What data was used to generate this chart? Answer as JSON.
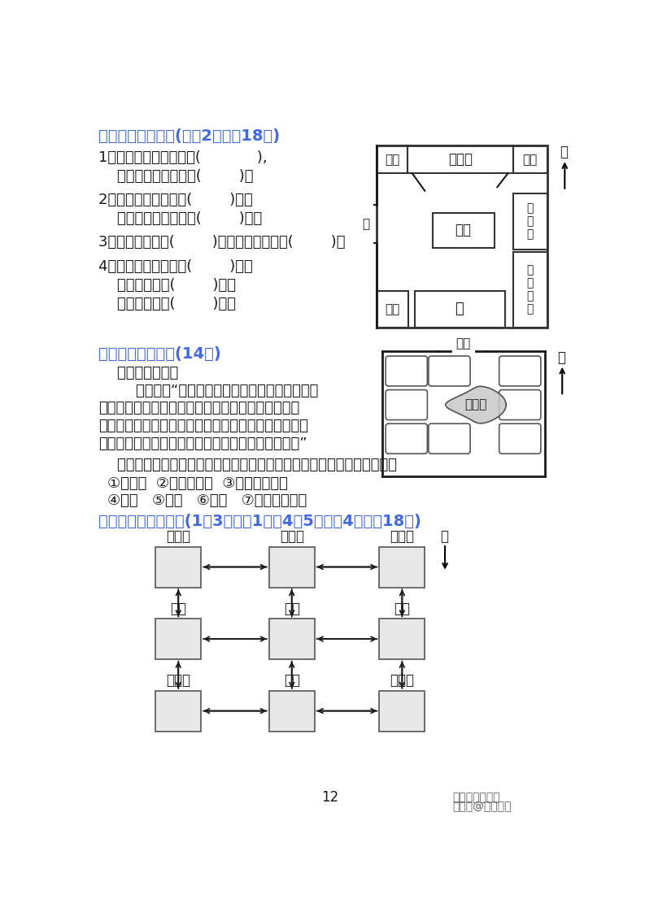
{
  "title_color": "#4169E1",
  "blue_color": "#4169E1",
  "bg_color": "#ffffff",
  "page_number": "12",
  "section4_title": "四、小明的卧室。(每穲2分，入18分)",
  "section5_title": "五、我会找位置。(14分)",
  "section6_title": "六、我会解决问题。(1～3题每穲1分，4～5题每题4分，入18分)",
  "q1_line1": "1．鱼缸的东面摆放的是(            ),",
  "q1_line2": "    鱼缸的南面摆放的是(        )。",
  "q2_line1": "2．运动用品在衣柜的(        )面，",
  "q2_line2": "    运动用品在收藏品的(        )面。",
  "q3_line1": "3．电脑在卧室的(        )角，书柜在卧室的(        )角",
  "q4_line1": "4．运动用品在电脑的(        )面，",
  "q4_line2": "    衣柜在书柜的(        )面，",
  "q4_line3": "    收藏品在床的(        )面。",
  "s5_text1": "    美丽的生态园。",
  "s5_text2": "        乐乐说：“走进生态园的大门，正南面是人工湖",
  "s5_text3": "和假山。人工湖的东面是采摘园，四季植物馆在人工",
  "s5_text4": "湖的西面，在花卉展销中心的南面，生态园的东北角、",
  "s5_text5": "东南角和西南角分别是生态水上乐园、竹林和草坤。”",
  "s5_instruction": "    请你根据乐乐的描述，把生态园内的这些景区的序号填在适当的位置上。",
  "s5_items1": "①采摘园  ②四季植物馆  ③花卉展销中心",
  "s5_items2": "④竹林   ⑤草坤   ⑥假山   ⑦生态水上乐园",
  "footer_center": "12",
  "footer_right1": "中小学满分学苑",
  "footer_right2": "搜狐号@好精譛斗"
}
